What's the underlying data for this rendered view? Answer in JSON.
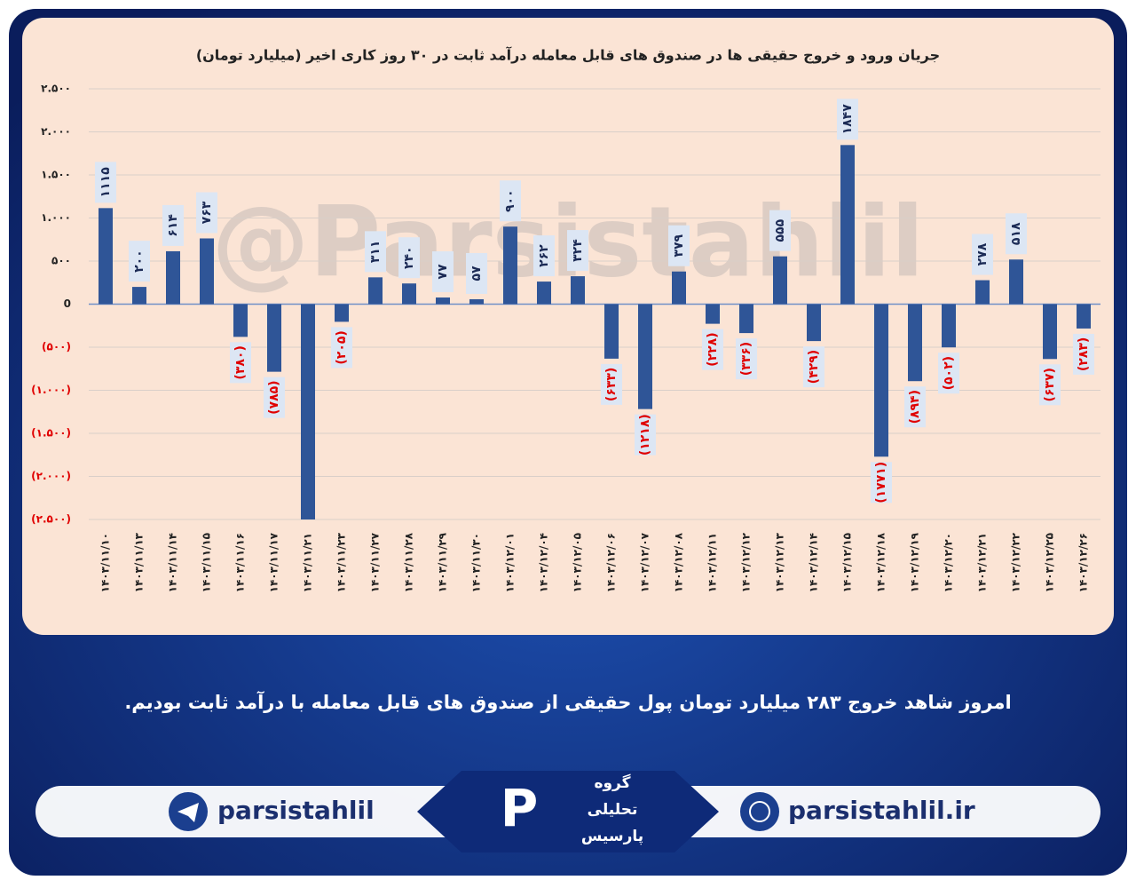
{
  "chart_data": {
    "type": "bar",
    "title": "جریان ورود و خروج حقیقی ها در صندوق های قابل معامله درآمد ثابت در ۳۰ روز کاری اخیر (میلیارد تومان)",
    "categories": [
      "۱۴۰۳/۱۱/۱۰",
      "۱۴۰۳/۱۱/۱۳",
      "۱۴۰۳/۱۱/۱۴",
      "۱۴۰۳/۱۱/۱۵",
      "۱۴۰۳/۱۱/۱۶",
      "۱۴۰۳/۱۱/۱۷",
      "۱۴۰۳/۱۱/۲۱",
      "۱۴۰۳/۱۱/۲۳",
      "۱۴۰۳/۱۱/۲۷",
      "۱۴۰۳/۱۱/۲۸",
      "۱۴۰۳/۱۱/۲۹",
      "۱۴۰۳/۱۱/۳۰",
      "۱۴۰۳/۱۲/۰۱",
      "۱۴۰۳/۱۲/۰۴",
      "۱۴۰۳/۱۲/۰۵",
      "۱۴۰۳/۱۲/۰۶",
      "۱۴۰۳/۱۲/۰۷",
      "۱۴۰۳/۱۲/۰۸",
      "۱۴۰۳/۱۲/۱۱",
      "۱۴۰۳/۱۲/۱۲",
      "۱۴۰۳/۱۲/۱۳",
      "۱۴۰۳/۱۲/۱۴",
      "۱۴۰۳/۱۲/۱۵",
      "۱۴۰۳/۱۲/۱۸",
      "۱۴۰۳/۱۲/۱۹",
      "۱۴۰۳/۱۲/۲۰",
      "۱۴۰۳/۱۲/۲۱",
      "۱۴۰۳/۱۲/۲۲",
      "۱۴۰۳/۱۲/۲۵",
      "۱۴۰۳/۱۲/۲۶"
    ],
    "values": [
      1115,
      200,
      614,
      763,
      -380,
      -785,
      -2500,
      -205,
      311,
      240,
      77,
      57,
      900,
      262,
      324,
      -633,
      -1218,
      379,
      -228,
      -336,
      555,
      -429,
      1847,
      -1771,
      -894,
      -502,
      278,
      518,
      -637,
      -283
    ],
    "value_labels": [
      "۱۱۱۵",
      "۲۰۰",
      "۶۱۴",
      "۷۶۳",
      "(۳۸۰)",
      "(۷۸۵)",
      null,
      "(۲۰۵)",
      "۳۱۱",
      "۲۴۰",
      "۷۷",
      "۵۷",
      "۹۰۰",
      "۲۶۲",
      "۳۲۴",
      "(۶۳۳)",
      "(۱۲۱۸)",
      "۳۷۹",
      "(۲۲۸)",
      "(۳۳۶)",
      "۵۵۵",
      "(۴۲۹)",
      "۱۸۴۷",
      "(۱۷۷۱)",
      "(۸۹۴)",
      "(۵۰۲)",
      "۲۷۸",
      "۵۱۸",
      "(۶۳۷)",
      "(۲۸۳)"
    ],
    "color": "#2f5597",
    "ylim": [
      -2500,
      2500
    ],
    "yticks": [
      {
        "value": -2500,
        "label": "(۲.۵۰۰)"
      },
      {
        "value": -2000,
        "label": "(۲.۰۰۰)"
      },
      {
        "value": -1500,
        "label": "(۱.۵۰۰)"
      },
      {
        "value": -1000,
        "label": "(۱.۰۰۰)"
      },
      {
        "value": -500,
        "label": "(۵۰۰)"
      },
      0,
      {
        "value": 500,
        "label": "۵۰۰"
      },
      {
        "value": 1000,
        "label": "۱.۰۰۰"
      },
      {
        "value": 1500,
        "label": "۱.۵۰۰"
      },
      {
        "value": 2000,
        "label": "۲.۰۰۰"
      },
      {
        "value": 2500,
        "label": "۲.۵۰۰"
      }
    ],
    "grid": true
  },
  "watermark": "@Parsistahlil",
  "caption": "امروز شاهد خروج ۲۸۳ میلیارد تومان پول حقیقی از صندوق های قابل معامله با درآمد ثابت بودیم.",
  "footer": {
    "telegram": "parsistahlil",
    "website": "parsistahlil.ir",
    "logo": [
      "گروه",
      "تحلیلی",
      "پارسیس"
    ]
  }
}
